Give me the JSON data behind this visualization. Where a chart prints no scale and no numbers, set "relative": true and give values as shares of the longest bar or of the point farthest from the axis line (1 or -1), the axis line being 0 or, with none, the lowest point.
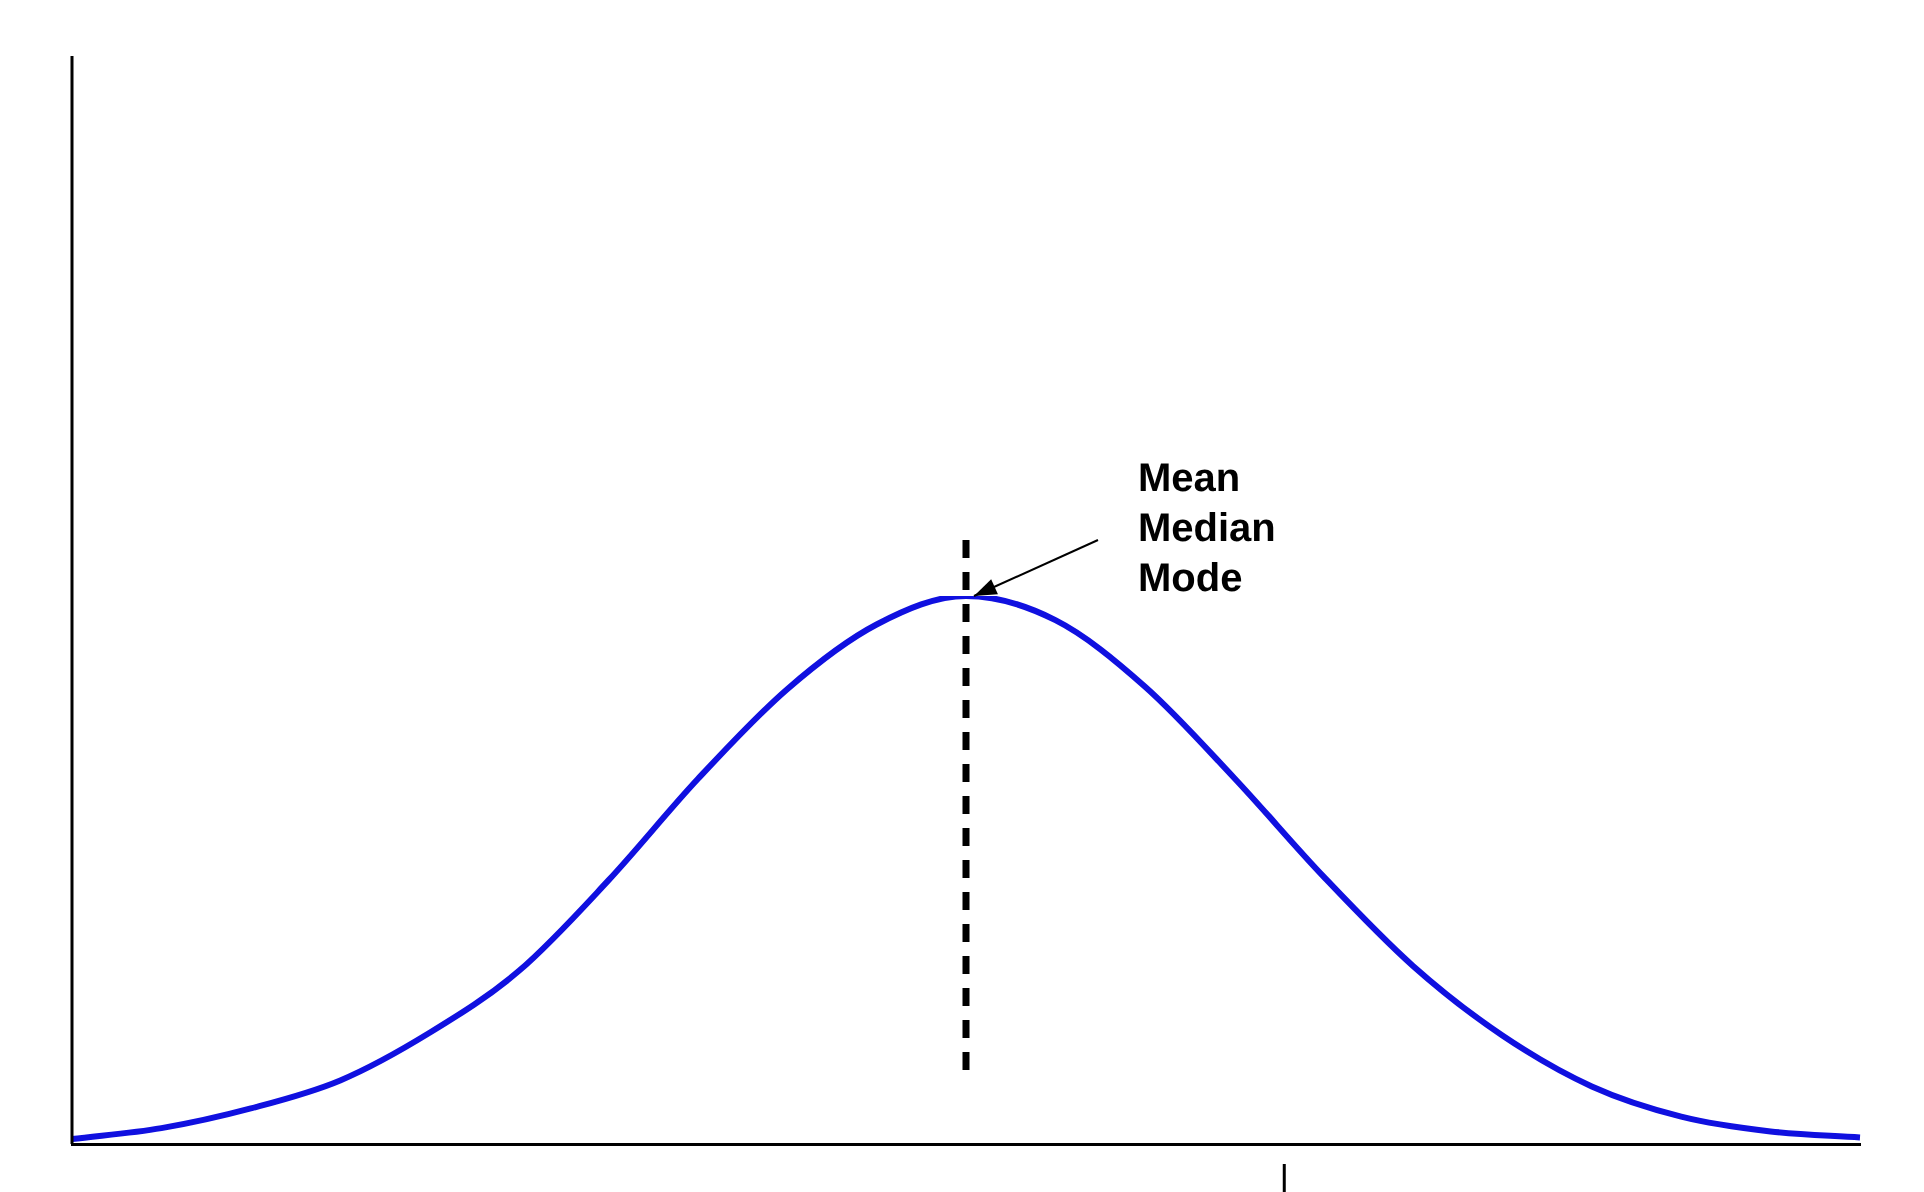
{
  "chart_data": {
    "type": "line",
    "relative": true,
    "grid": false,
    "legend": false,
    "marker": "none",
    "categories": [
      null,
      null,
      null,
      null,
      null,
      null,
      null,
      null,
      null,
      null,
      null,
      null,
      null,
      null,
      null,
      null,
      null,
      null,
      null,
      null,
      null
    ],
    "annotations": [
      "Mean\nMedian\nMode"
    ],
    "series": [
      {
        "color": "#1010e0",
        "values": [
          0.009,
          0.029,
          0.065,
          0.116,
          0.203,
          0.316,
          0.481,
          0.666,
          0.83,
          0.948,
          1,
          0.956,
          0.835,
          0.668,
          0.488,
          0.325,
          0.198,
          0.105,
          0.05,
          0.023,
          0.012
        ]
      }
    ]
  }
}
